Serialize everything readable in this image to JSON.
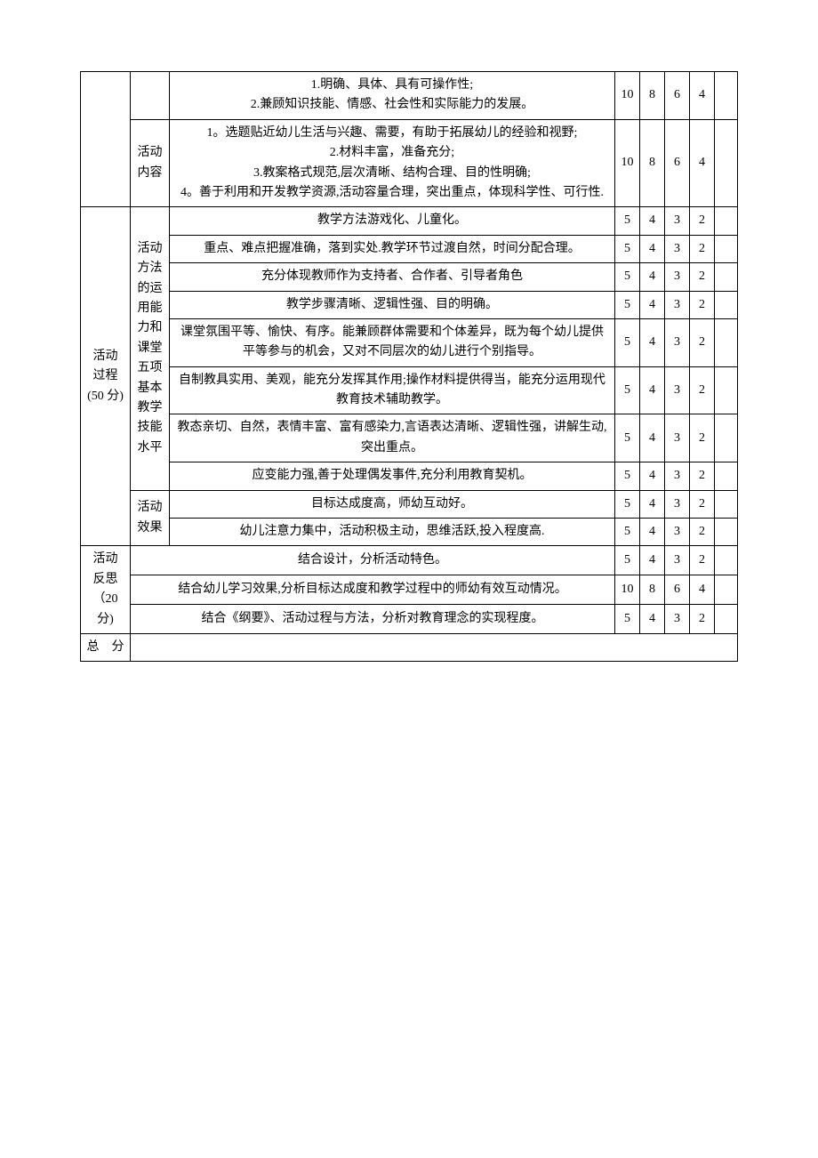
{
  "colors": {
    "border": "#000000",
    "text": "#000000",
    "background": "#ffffff"
  },
  "font": {
    "family": "SimSun",
    "size_pt": 11,
    "line_height": 1.6
  },
  "columns": {
    "row_header_width": 56,
    "sub_header_width": 44,
    "score_widths": [
      28,
      28,
      28,
      28,
      26
    ]
  },
  "sections": [
    {
      "rows": [
        {
          "sub": "",
          "criteria": "1.明确、具体、具有可操作性;\n2.兼顾知识技能、情感、社会性和实际能力的发展。",
          "scores": [
            "10",
            "8",
            "6",
            "4",
            ""
          ]
        },
        {
          "sub": "活动\n内容",
          "criteria": "1。选题贴近幼儿生活与兴趣、需要，有助于拓展幼儿的经验和视野;\n2.材料丰富，准备充分;\n3.教案格式规范,层次清晰、结构合理、目的性明确;\n4。善于利用和开发教学资源,活动容量合理，突出重点，体现科学性、可行性.",
          "scores": [
            "10",
            "8",
            "6",
            "4",
            ""
          ]
        }
      ]
    },
    {
      "header": "活动\n过程\n(50 分)",
      "sub1": "活动\n方法\n的运\n用能\n力和\n课堂\n五项\n基本\n教学\n技能\n水平",
      "rows1": [
        {
          "criteria": "教学方法游戏化、儿童化。",
          "scores": [
            "5",
            "4",
            "3",
            "2",
            ""
          ]
        },
        {
          "criteria": "重点、难点把握准确，落到实处.教学环节过渡自然，时间分配合理。",
          "scores": [
            "5",
            "4",
            "3",
            "2",
            ""
          ]
        },
        {
          "criteria": "充分体现教师作为支持者、合作者、引导者角色",
          "scores": [
            "5",
            "4",
            "3",
            "2",
            ""
          ]
        },
        {
          "criteria": "教学步骤清晰、逻辑性强、目的明确。",
          "scores": [
            "5",
            "4",
            "3",
            "2",
            ""
          ]
        },
        {
          "criteria": "课堂氛围平等、愉快、有序。能兼顾群体需要和个体差异，既为每个幼儿提供平等参与的机会，又对不同层次的幼儿进行个别指导。",
          "scores": [
            "5",
            "4",
            "3",
            "2",
            ""
          ]
        },
        {
          "criteria": "自制教具实用、美观，能充分发挥其作用;操作材料提供得当，能充分运用现代教育技术辅助教学。",
          "scores": [
            "5",
            "4",
            "3",
            "2",
            ""
          ]
        },
        {
          "criteria": "教态亲切、自然，表情丰富、富有感染力,言语表达清晰、逻辑性强，讲解生动,突出重点。",
          "scores": [
            "5",
            "4",
            "3",
            "2",
            ""
          ]
        },
        {
          "criteria": "应变能力强,善于处理偶发事件,充分利用教育契机。",
          "scores": [
            "5",
            "4",
            "3",
            "2",
            ""
          ]
        }
      ],
      "sub2": "活动\n效果",
      "rows2": [
        {
          "criteria": "目标达成度高，师幼互动好。",
          "scores": [
            "5",
            "4",
            "3",
            "2",
            ""
          ]
        },
        {
          "criteria": "幼儿注意力集中，活动积极主动，思维活跃,投入程度高.",
          "scores": [
            "5",
            "4",
            "3",
            "2",
            ""
          ]
        }
      ]
    },
    {
      "header": "活动\n反思\n（20 分)",
      "rows": [
        {
          "criteria": "结合设计，分析活动特色。",
          "scores": [
            "5",
            "4",
            "3",
            "2",
            ""
          ]
        },
        {
          "criteria": "结合幼儿学习效果,分析目标达成度和教学过程中的师幼有效互动情况。",
          "scores": [
            "10",
            "8",
            "6",
            "4",
            ""
          ]
        },
        {
          "criteria": "结合《纲要》、活动过程与方法，分析对教育理念的实现程度。",
          "scores": [
            "5",
            "4",
            "3",
            "2",
            ""
          ]
        }
      ]
    }
  ],
  "total_label": "总　分"
}
